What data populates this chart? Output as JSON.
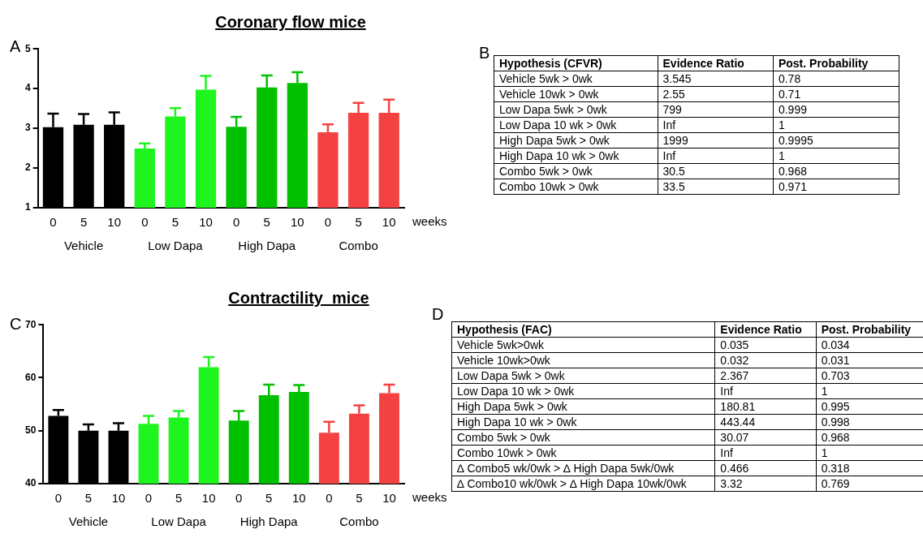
{
  "chart_data": [
    {
      "type": "bar",
      "title": "Coronary flow mice",
      "xlabel": "weeks",
      "annotations": [
        "A",
        "Vehicle",
        "Low Dapa",
        "High Dapa",
        "Combo"
      ],
      "categories": [
        "0",
        "5",
        "10",
        "0",
        "5",
        "10",
        "0",
        "5",
        "10",
        "0",
        "5",
        "10"
      ],
      "values": [
        3.03,
        3.09,
        3.09,
        2.49,
        3.3,
        3.97,
        3.04,
        4.03,
        4.14,
        2.9,
        3.39,
        3.39
      ],
      "errors": [
        [
          3.03,
          3.37
        ],
        [
          3.09,
          3.36
        ],
        [
          3.09,
          3.4
        ],
        [
          2.49,
          2.62
        ],
        [
          3.3,
          3.51
        ],
        [
          3.97,
          4.32
        ],
        [
          3.04,
          3.29
        ],
        [
          4.03,
          4.33
        ],
        [
          4.14,
          4.41
        ],
        [
          2.9,
          3.1
        ],
        [
          3.39,
          3.64
        ],
        [
          3.39,
          3.72
        ]
      ],
      "colors": [
        "#000000",
        "#000000",
        "#000000",
        "#1ef51e",
        "#1ef51e",
        "#1ef51e",
        "#00c000",
        "#00c000",
        "#00c000",
        "#f44242",
        "#f44242",
        "#f44242"
      ],
      "ylim": [
        1,
        5
      ],
      "yticks": [
        1,
        2,
        3,
        4,
        5
      ],
      "grid": false,
      "legend": false
    },
    {
      "type": "other",
      "annotations": [
        "B"
      ],
      "categories": [
        "Hypothesis (CFVR)",
        "Evidence Ratio",
        "Post. Probability"
      ],
      "y_categories": [
        "Vehicle 5wk > 0wk",
        "Vehicle 10wk > 0wk",
        "Low Dapa 5wk > 0wk",
        "Low Dapa 10 wk > 0wk",
        "High Dapa 5wk > 0wk",
        "High Dapa 10 wk > 0wk",
        "Combo 5wk > 0wk",
        "Combo 10wk > 0wk"
      ],
      "cell_labels": [
        [
          "3.545",
          "0.78"
        ],
        [
          "2.55",
          "0.71"
        ],
        [
          "799",
          "0.999"
        ],
        [
          "Inf",
          "1"
        ],
        [
          "1999",
          "0.9995"
        ],
        [
          "Inf",
          "1"
        ],
        [
          "30.5",
          "0.968"
        ],
        [
          "33.5",
          "0.971"
        ]
      ]
    },
    {
      "type": "bar",
      "title": "Contractility  mice",
      "xlabel": "weeks",
      "annotations": [
        "C",
        "Vehicle",
        "Low Dapa",
        "High Dapa",
        "Combo"
      ],
      "categories": [
        "0",
        "5",
        "10",
        "0",
        "5",
        "10",
        "0",
        "5",
        "10",
        "0",
        "5",
        "10"
      ],
      "values": [
        52.8,
        50.0,
        50.0,
        51.3,
        52.5,
        62.0,
        51.9,
        56.7,
        57.3,
        49.6,
        53.2,
        57.1
      ],
      "errors": [
        [
          52.8,
          53.9
        ],
        [
          50.0,
          51.2
        ],
        [
          50.0,
          51.4
        ],
        [
          51.3,
          52.8
        ],
        [
          52.5,
          53.7
        ],
        [
          62.0,
          63.9
        ],
        [
          51.9,
          53.7
        ],
        [
          56.7,
          58.7
        ],
        [
          57.3,
          58.6
        ],
        [
          49.6,
          51.7
        ],
        [
          53.2,
          54.8
        ],
        [
          57.1,
          58.7
        ]
      ],
      "colors": [
        "#000000",
        "#000000",
        "#000000",
        "#1ef51e",
        "#1ef51e",
        "#1ef51e",
        "#00c000",
        "#00c000",
        "#00c000",
        "#f44242",
        "#f44242",
        "#f44242"
      ],
      "ylim": [
        40,
        70
      ],
      "yticks": [
        40,
        50,
        60,
        70
      ],
      "grid": false,
      "legend": false
    },
    {
      "type": "other",
      "annotations": [
        "D"
      ],
      "categories": [
        "Hypothesis (FAC)",
        "Evidence Ratio",
        "Post. Probability"
      ],
      "y_categories": [
        "Vehicle 5wk>0wk",
        "Vehicle 10wk>0wk",
        "Low Dapa 5wk > 0wk",
        "Low Dapa 10 wk > 0wk",
        "High Dapa 5wk > 0wk",
        "High Dapa 10 wk > 0wk",
        "Combo 5wk > 0wk",
        "Combo 10wk > 0wk",
        "∆ Combo5 wk/0wk > ∆ High Dapa 5wk/0wk",
        "∆ Combo10 wk/0wk > ∆ High Dapa 10wk/0wk"
      ],
      "cell_labels": [
        [
          "0.035",
          "0.034"
        ],
        [
          "0.032",
          "0.031"
        ],
        [
          "2.367",
          "0.703"
        ],
        [
          "Inf",
          "1"
        ],
        [
          "180.81",
          "0.995"
        ],
        [
          "443.44",
          "0.998"
        ],
        [
          "30.07",
          "0.968"
        ],
        [
          "Inf",
          "1"
        ],
        [
          "0.466",
          "0.318"
        ],
        [
          "3.32",
          "0.769"
        ]
      ]
    }
  ]
}
